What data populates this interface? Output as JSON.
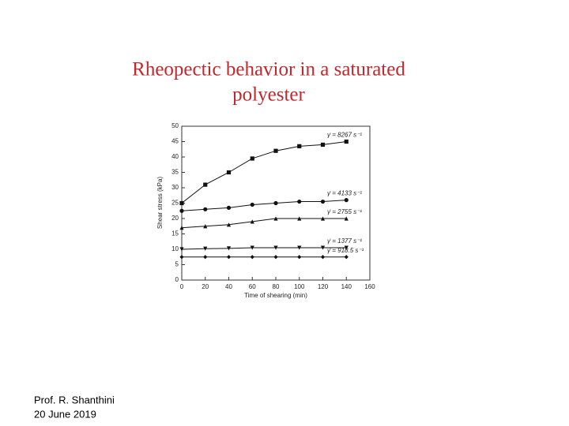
{
  "chart_data": {
    "type": "line",
    "title": [
      "Rheopectic behavior in a saturated",
      "polyester"
    ],
    "x_label": "Time of shearing (min)",
    "y_label": "Shear stress (kPa)",
    "x": [
      0,
      20,
      40,
      60,
      80,
      100,
      120,
      140
    ],
    "series": [
      {
        "name": "γ̇ = 8267 s⁻¹",
        "marker": "square",
        "color": "#111",
        "values": [
          25,
          31,
          35,
          39.5,
          42,
          43.5,
          44,
          45
        ]
      },
      {
        "name": "γ̇ = 4133 s⁻¹",
        "marker": "circle",
        "color": "#111",
        "values": [
          22.5,
          23,
          23.5,
          24.5,
          25,
          25.5,
          25.5,
          26
        ]
      },
      {
        "name": "γ̇ = 2755 s⁻¹",
        "marker": "triangle",
        "color": "#111",
        "values": [
          17,
          17.5,
          18,
          19,
          20,
          20,
          20,
          20
        ]
      },
      {
        "name": "γ̇ = 1377 s⁻¹",
        "marker": "triangle-down",
        "color": "#111",
        "values": [
          10,
          10.2,
          10.3,
          10.5,
          10.5,
          10.5,
          10.5,
          10.5
        ]
      },
      {
        "name": "γ̇ = 918.5 s⁻¹",
        "marker": "diamond",
        "color": "#111",
        "values": [
          7.5,
          7.5,
          7.5,
          7.5,
          7.5,
          7.5,
          7.5,
          7.5
        ]
      }
    ],
    "xlim": [
      0,
      160
    ],
    "xticks": [
      0,
      20,
      40,
      60,
      80,
      100,
      120,
      140,
      160
    ],
    "ylim": [
      0,
      50
    ],
    "yticks": [
      0,
      5,
      10,
      15,
      20,
      25,
      30,
      35,
      40,
      45,
      50
    ]
  },
  "footer": {
    "author": "Prof. R. Shanthini",
    "date": "20 June 2019"
  }
}
